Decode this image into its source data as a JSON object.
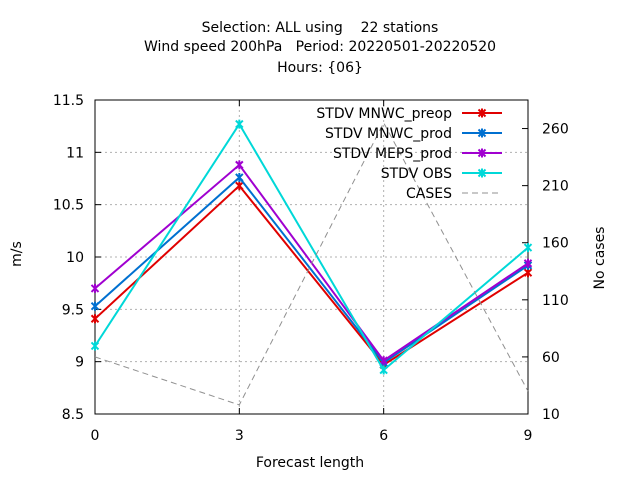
{
  "chart_data": {
    "type": "line",
    "title_lines": [
      "Selection: ALL using    22 stations",
      "Wind speed 200hPa   Period: 20220501-20220520",
      "Hours: {06}"
    ],
    "xlabel": "Forecast length",
    "ylabel": "m/s",
    "y2label": "No cases",
    "x": [
      0,
      3,
      6,
      9
    ],
    "xlim": [
      0,
      9
    ],
    "ylim": [
      8.5,
      11.5
    ],
    "y2lim": [
      10,
      285
    ],
    "xticks": [
      "0",
      "3",
      "6",
      "9"
    ],
    "yticks": [
      "8.5",
      "9",
      "9.5",
      "10",
      "10.5",
      "11",
      "11.5"
    ],
    "y2ticks": [
      "10",
      "60",
      "110",
      "160",
      "210",
      "260"
    ],
    "grid": true,
    "legend_position": "top-right",
    "series": [
      {
        "name": "STDV MNWC_preop",
        "axis": "y1",
        "color": "#e00000",
        "values": [
          9.41,
          10.68,
          8.97,
          9.85
        ]
      },
      {
        "name": "STDV MNWC_prod",
        "axis": "y1",
        "color": "#0070d0",
        "values": [
          9.53,
          10.76,
          8.99,
          9.92
        ]
      },
      {
        "name": "STDV MEPS_prod",
        "axis": "y1",
        "color": "#a000d0",
        "values": [
          9.7,
          10.88,
          9.01,
          9.94
        ]
      },
      {
        "name": "STDV OBS",
        "axis": "y1",
        "color": "#00d8d8",
        "values": [
          9.15,
          11.27,
          8.92,
          10.09
        ]
      },
      {
        "name": "CASES",
        "axis": "y2",
        "color": "#909090",
        "dashed": true,
        "values": [
          60,
          18,
          265,
          30
        ]
      }
    ]
  }
}
